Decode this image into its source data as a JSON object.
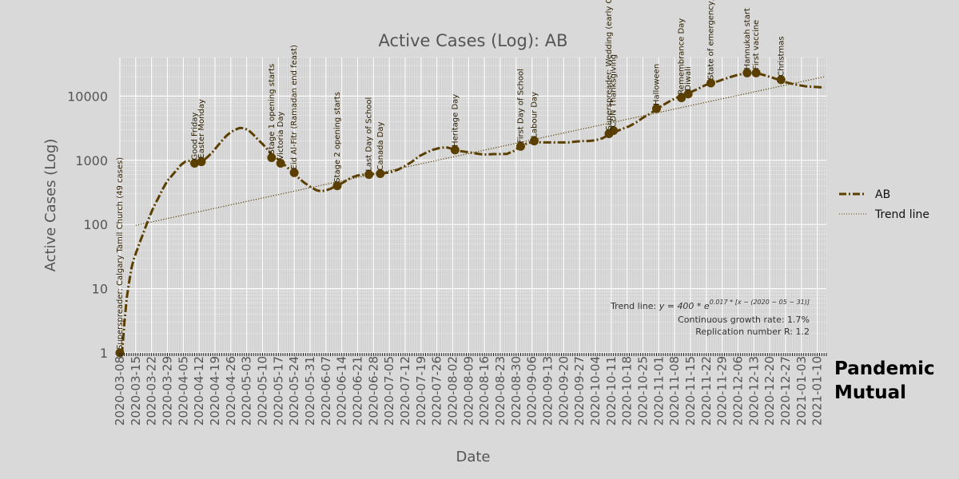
{
  "chart_data": {
    "type": "line",
    "title": "Active Cases (Log): AB",
    "xlabel": "Date",
    "ylabel": "Active Cases (Log)",
    "y_scale": "log",
    "ylim": [
      1,
      40000
    ],
    "xlim": [
      "2020-03-08",
      "2021-01-14"
    ],
    "grid": true,
    "legend_position": "right",
    "x_ticks": [
      "2020-03-08",
      "2020-03-15",
      "2020-03-22",
      "2020-03-29",
      "2020-04-05",
      "2020-04-12",
      "2020-04-19",
      "2020-04-26",
      "2020-05-03",
      "2020-05-10",
      "2020-05-17",
      "2020-05-24",
      "2020-05-31",
      "2020-06-07",
      "2020-06-14",
      "2020-06-21",
      "2020-06-28",
      "2020-07-05",
      "2020-07-12",
      "2020-07-19",
      "2020-07-26",
      "2020-08-02",
      "2020-08-09",
      "2020-08-16",
      "2020-08-23",
      "2020-08-30",
      "2020-09-06",
      "2020-09-13",
      "2020-09-20",
      "2020-09-27",
      "2020-10-04",
      "2020-10-11",
      "2020-10-18",
      "2020-10-25",
      "2020-11-01",
      "2020-11-08",
      "2020-11-15",
      "2020-11-22",
      "2020-11-29",
      "2020-12-06",
      "2020-12-13",
      "2020-12-20",
      "2020-12-27",
      "2021-01-03",
      "2021-01-10"
    ],
    "y_ticks": [
      {
        "value": 1,
        "label": "1"
      },
      {
        "value": 10,
        "label": "10"
      },
      {
        "value": 100,
        "label": "100"
      },
      {
        "value": 1000,
        "label": "1000"
      },
      {
        "value": 10000,
        "label": "10000"
      }
    ],
    "series": [
      {
        "name": "AB",
        "color": "#5a3f00",
        "style": "dash-dot",
        "points": [
          [
            "2020-03-08",
            1
          ],
          [
            "2020-03-09",
            1
          ],
          [
            "2020-03-10",
            3
          ],
          [
            "2020-03-11",
            7
          ],
          [
            "2020-03-12",
            12
          ],
          [
            "2020-03-13",
            20
          ],
          [
            "2020-03-14",
            28
          ],
          [
            "2020-03-15",
            35
          ],
          [
            "2020-03-17",
            55
          ],
          [
            "2020-03-19",
            85
          ],
          [
            "2020-03-21",
            130
          ],
          [
            "2020-03-23",
            190
          ],
          [
            "2020-03-25",
            260
          ],
          [
            "2020-03-27",
            360
          ],
          [
            "2020-03-29",
            480
          ],
          [
            "2020-03-31",
            580
          ],
          [
            "2020-04-02",
            700
          ],
          [
            "2020-04-04",
            850
          ],
          [
            "2020-04-06",
            960
          ],
          [
            "2020-04-08",
            980
          ],
          [
            "2020-04-10",
            900
          ],
          [
            "2020-04-12",
            900
          ],
          [
            "2020-04-14",
            1000
          ],
          [
            "2020-04-16",
            1150
          ],
          [
            "2020-04-18",
            1350
          ],
          [
            "2020-04-20",
            1650
          ],
          [
            "2020-04-22",
            2000
          ],
          [
            "2020-04-24",
            2400
          ],
          [
            "2020-04-26",
            2750
          ],
          [
            "2020-04-28",
            3000
          ],
          [
            "2020-04-30",
            3200
          ],
          [
            "2020-05-02",
            3150
          ],
          [
            "2020-05-04",
            2900
          ],
          [
            "2020-05-06",
            2500
          ],
          [
            "2020-05-08",
            2100
          ],
          [
            "2020-05-10",
            1800
          ],
          [
            "2020-05-12",
            1500
          ],
          [
            "2020-05-14",
            1250
          ],
          [
            "2020-05-16",
            1100
          ],
          [
            "2020-05-18",
            950
          ],
          [
            "2020-05-20",
            830
          ],
          [
            "2020-05-22",
            720
          ],
          [
            "2020-05-24",
            620
          ],
          [
            "2020-05-26",
            530
          ],
          [
            "2020-05-28",
            460
          ],
          [
            "2020-05-30",
            410
          ],
          [
            "2020-06-01",
            370
          ],
          [
            "2020-06-03",
            340
          ],
          [
            "2020-06-05",
            330
          ],
          [
            "2020-06-07",
            340
          ],
          [
            "2020-06-09",
            360
          ],
          [
            "2020-06-11",
            390
          ],
          [
            "2020-06-13",
            420
          ],
          [
            "2020-06-15",
            460
          ],
          [
            "2020-06-17",
            510
          ],
          [
            "2020-06-19",
            550
          ],
          [
            "2020-06-21",
            580
          ],
          [
            "2020-06-24",
            600
          ],
          [
            "2020-06-27",
            610
          ],
          [
            "2020-06-30",
            620
          ],
          [
            "2020-07-03",
            630
          ],
          [
            "2020-07-06",
            660
          ],
          [
            "2020-07-09",
            720
          ],
          [
            "2020-07-12",
            820
          ],
          [
            "2020-07-15",
            950
          ],
          [
            "2020-07-18",
            1150
          ],
          [
            "2020-07-21",
            1300
          ],
          [
            "2020-07-24",
            1450
          ],
          [
            "2020-07-27",
            1550
          ],
          [
            "2020-07-30",
            1600
          ],
          [
            "2020-08-02",
            1500
          ],
          [
            "2020-08-05",
            1400
          ],
          [
            "2020-08-08",
            1350
          ],
          [
            "2020-08-11",
            1300
          ],
          [
            "2020-08-14",
            1250
          ],
          [
            "2020-08-17",
            1230
          ],
          [
            "2020-08-20",
            1250
          ],
          [
            "2020-08-23",
            1250
          ],
          [
            "2020-08-26",
            1260
          ],
          [
            "2020-08-29",
            1400
          ],
          [
            "2020-09-01",
            1650
          ],
          [
            "2020-09-04",
            1850
          ],
          [
            "2020-09-07",
            1950
          ],
          [
            "2020-09-10",
            1900
          ],
          [
            "2020-09-13",
            1900
          ],
          [
            "2020-09-16",
            1900
          ],
          [
            "2020-09-19",
            1900
          ],
          [
            "2020-09-22",
            1900
          ],
          [
            "2020-09-25",
            1950
          ],
          [
            "2020-09-28",
            2000
          ],
          [
            "2020-10-01",
            2000
          ],
          [
            "2020-10-04",
            2050
          ],
          [
            "2020-10-07",
            2200
          ],
          [
            "2020-10-10",
            2500
          ],
          [
            "2020-10-13",
            2800
          ],
          [
            "2020-10-16",
            3100
          ],
          [
            "2020-10-19",
            3400
          ],
          [
            "2020-10-22",
            3900
          ],
          [
            "2020-10-25",
            4600
          ],
          [
            "2020-10-28",
            5300
          ],
          [
            "2020-10-31",
            6200
          ],
          [
            "2020-11-03",
            7300
          ],
          [
            "2020-11-06",
            8400
          ],
          [
            "2020-11-09",
            9500
          ],
          [
            "2020-11-12",
            10500
          ],
          [
            "2020-11-15",
            11500
          ],
          [
            "2020-11-18",
            12800
          ],
          [
            "2020-11-21",
            14500
          ],
          [
            "2020-11-24",
            16000
          ],
          [
            "2020-11-27",
            17000
          ],
          [
            "2020-11-30",
            18500
          ],
          [
            "2020-12-03",
            20000
          ],
          [
            "2020-12-06",
            21500
          ],
          [
            "2020-12-09",
            22500
          ],
          [
            "2020-12-12",
            23000
          ],
          [
            "2020-12-15",
            22500
          ],
          [
            "2020-12-18",
            21000
          ],
          [
            "2020-12-21",
            19500
          ],
          [
            "2020-12-24",
            18000
          ],
          [
            "2020-12-27",
            16500
          ],
          [
            "2020-12-30",
            15500
          ],
          [
            "2021-01-02",
            14800
          ],
          [
            "2021-01-05",
            14200
          ],
          [
            "2021-01-08",
            14000
          ],
          [
            "2021-01-11",
            13800
          ],
          [
            "2021-01-13",
            13500
          ]
        ]
      },
      {
        "name": "Trend line",
        "color": "#5a3f00",
        "style": "dotted",
        "points": [
          [
            "2020-03-15",
            97
          ],
          [
            "2021-01-13",
            20000
          ]
        ]
      }
    ],
    "annotations": [
      {
        "date": "2020-03-08",
        "y": 1,
        "label": "Superspreader: Calgary Tamil Church (49 cases)"
      },
      {
        "date": "2020-04-10",
        "y": 900,
        "label": "Good Friday"
      },
      {
        "date": "2020-04-13",
        "y": 950,
        "label": "Easter Monday"
      },
      {
        "date": "2020-05-14",
        "y": 1100,
        "label": "Stage 1 opening starts"
      },
      {
        "date": "2020-05-18",
        "y": 900,
        "label": "Victoria Day"
      },
      {
        "date": "2020-05-24",
        "y": 640,
        "label": "Eid Al-Fitr (Ramadan end feast)"
      },
      {
        "date": "2020-06-12",
        "y": 400,
        "label": "Stage 2 opening starts"
      },
      {
        "date": "2020-06-26",
        "y": 600,
        "label": "Last Day of School"
      },
      {
        "date": "2020-07-01",
        "y": 620,
        "label": "Canada Day"
      },
      {
        "date": "2020-08-03",
        "y": 1450,
        "label": "Heritage Day"
      },
      {
        "date": "2020-09-01",
        "y": 1650,
        "label": "First Day of School"
      },
      {
        "date": "2020-09-07",
        "y": 2000,
        "label": "Labour Day"
      },
      {
        "date": "2020-10-10",
        "y": 2600,
        "label": "Superspreader: Wedding (early Oct)"
      },
      {
        "date": "2020-10-12",
        "y": 2900,
        "label": "CDN Thanksgiving"
      },
      {
        "date": "2020-10-31",
        "y": 6400,
        "label": "Halloween"
      },
      {
        "date": "2020-11-11",
        "y": 9400,
        "label": "Remembrance Day"
      },
      {
        "date": "2020-11-14",
        "y": 10800,
        "label": "Diwali"
      },
      {
        "date": "2020-11-24",
        "y": 16000,
        "label": "State of emergency, M"
      },
      {
        "date": "2020-12-10",
        "y": 23000,
        "label": "Hannukah start"
      },
      {
        "date": "2020-12-14",
        "y": 23000,
        "label": "First vaccine"
      },
      {
        "date": "2020-12-25",
        "y": 18000,
        "label": "Christmas"
      }
    ],
    "trend_info": {
      "line1": "Trend line: ",
      "formula": "y = 400 * e",
      "exponent": "0.017 * [x − (2020 − 05 − 31)]",
      "line2": "Continuous growth rate: 1.7%",
      "line3": "Replication number R: 1.2"
    }
  },
  "brand": {
    "line1": "Pandemic",
    "line2": "Mutual",
    "color1": "#000000",
    "color2": "#e31a1c"
  }
}
